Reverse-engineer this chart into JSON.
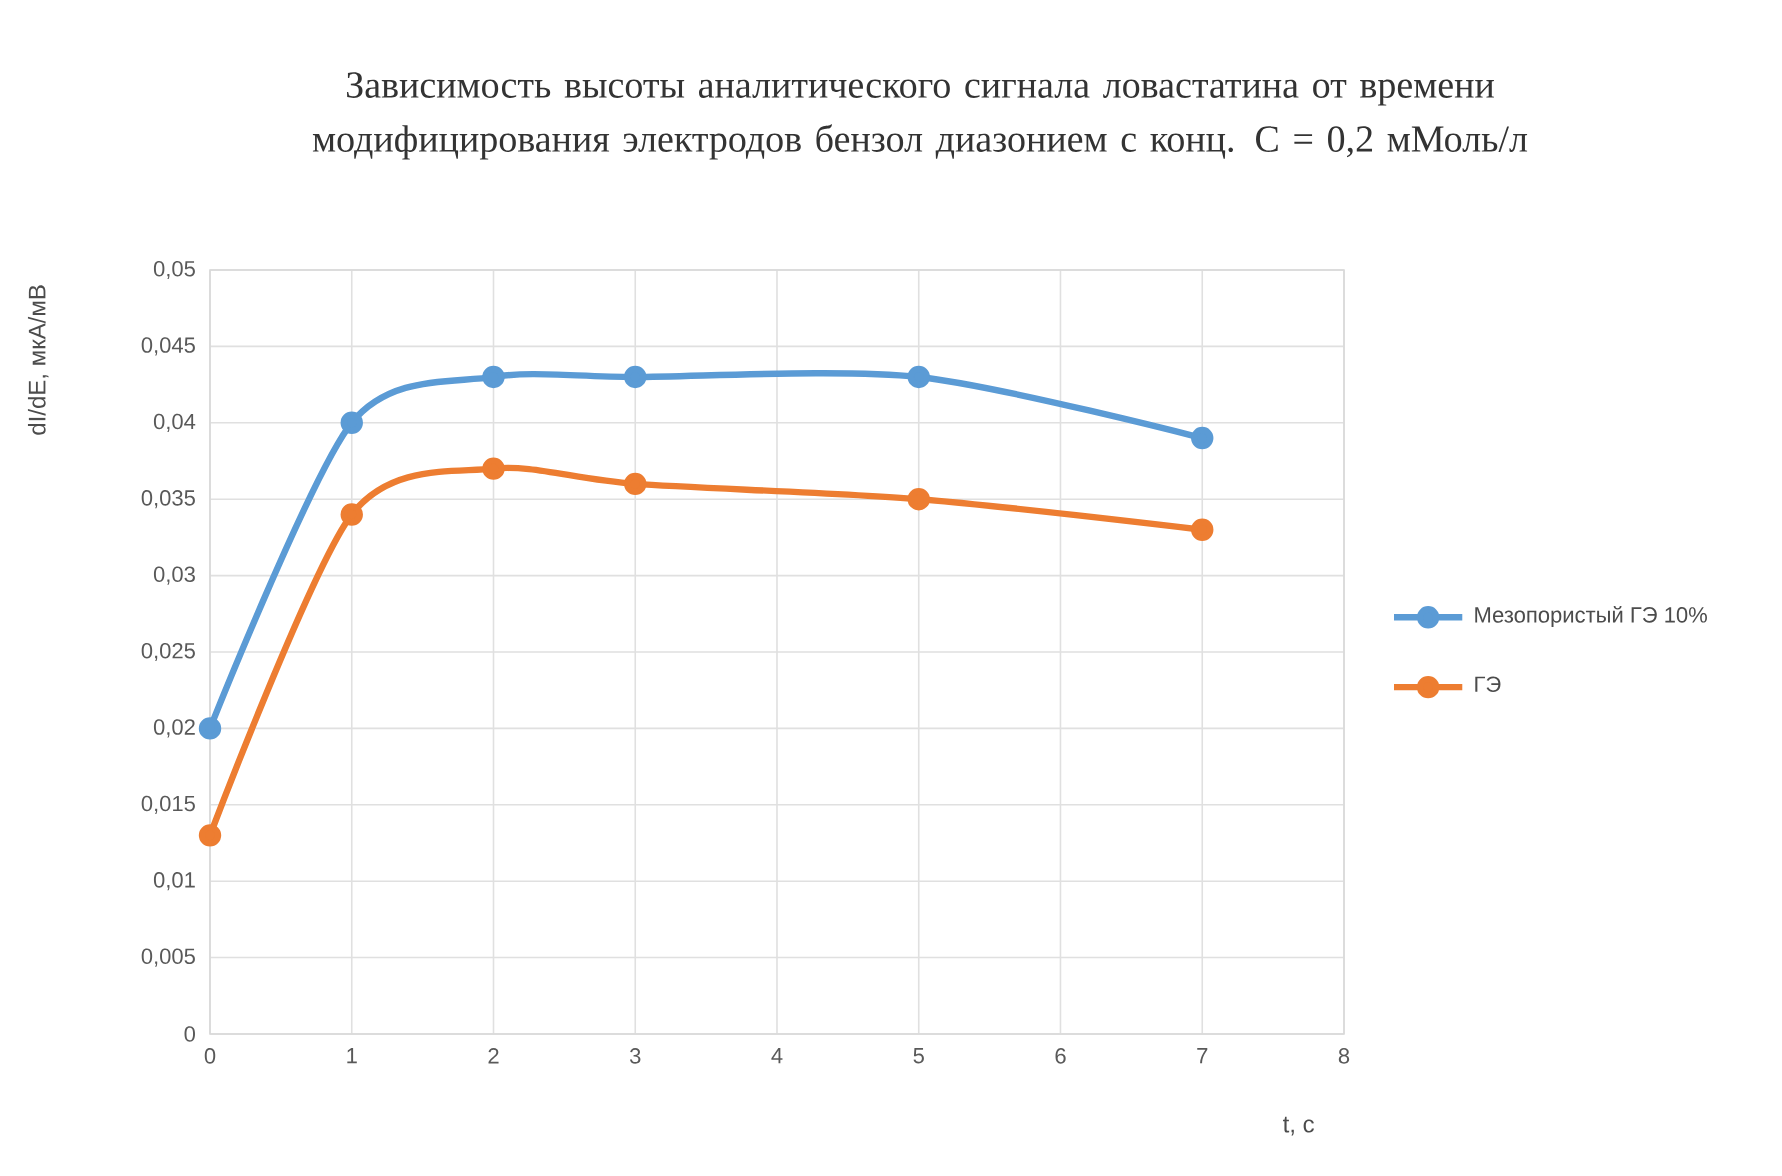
{
  "chart_data": {
    "type": "line",
    "title": "Зависимость высоты аналитического сигнала ловастатина от времени модифицирования электродов бензол диазонием с конц. С = 0,2 мМоль/л",
    "xlabel": "t, c",
    "ylabel": "dI/dE,  мкА/мВ",
    "x": [
      0,
      1,
      2,
      3,
      5,
      7
    ],
    "series": [
      {
        "name": "Мезопористый ГЭ 10%",
        "color": "#5b9bd5",
        "values": [
          0.02,
          0.04,
          0.043,
          0.043,
          0.043,
          0.039
        ]
      },
      {
        "name": "ГЭ",
        "color": "#ed7d31",
        "values": [
          0.013,
          0.034,
          0.037,
          0.036,
          0.035,
          0.033
        ]
      }
    ],
    "xlim": [
      0,
      8
    ],
    "xticks": [
      0,
      1,
      2,
      3,
      4,
      5,
      6,
      7,
      8
    ],
    "ylim": [
      0,
      0.05
    ],
    "yticks": [
      {
        "value": 0,
        "label": "0"
      },
      {
        "value": 0.005,
        "label": "0,005"
      },
      {
        "value": 0.01,
        "label": "0,01"
      },
      {
        "value": 0.015,
        "label": "0,015"
      },
      {
        "value": 0.02,
        "label": "0,02"
      },
      {
        "value": 0.025,
        "label": "0,025"
      },
      {
        "value": 0.03,
        "label": "0,03"
      },
      {
        "value": 0.035,
        "label": "0,035"
      },
      {
        "value": 0.04,
        "label": "0,04"
      },
      {
        "value": 0.045,
        "label": "0,045"
      },
      {
        "value": 0.05,
        "label": "0,05"
      }
    ],
    "grid": true,
    "legend": "right",
    "marker": "circle",
    "line_style": "solid"
  }
}
